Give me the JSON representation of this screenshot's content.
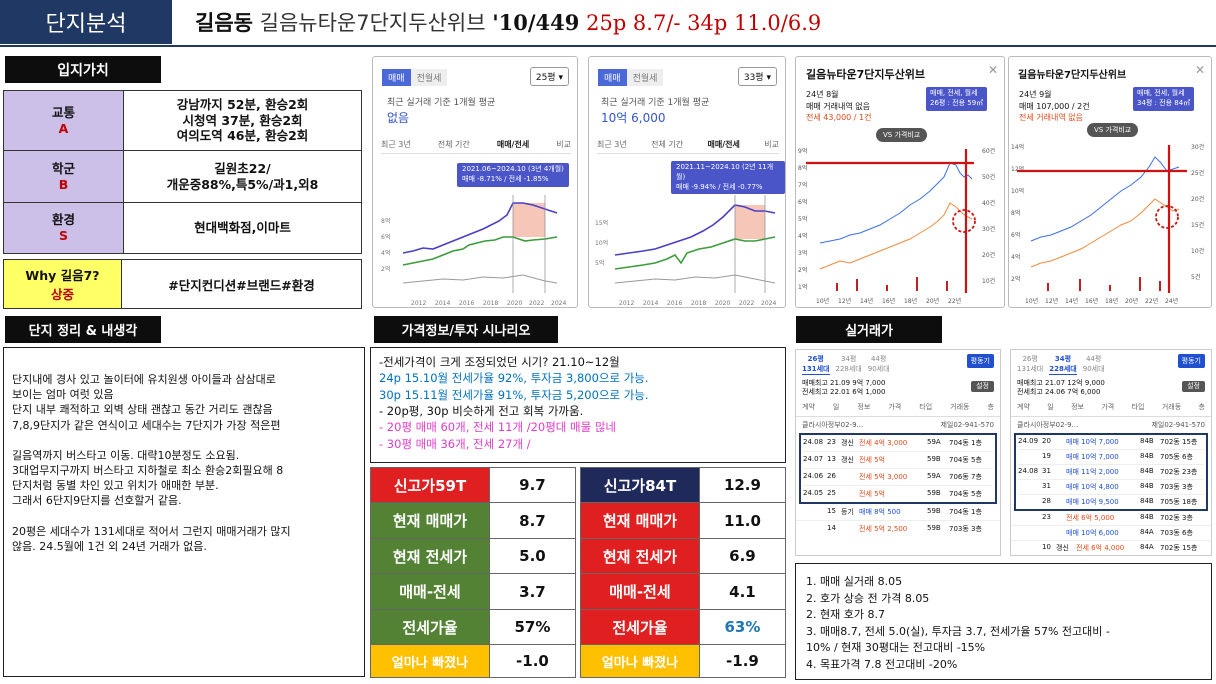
{
  "header": {
    "tag": "단지분석",
    "title_bold": "길음동",
    "title_name": "길음뉴타운7단지두산위브",
    "title_units": "'10/449",
    "title_price": "25p 8.7/- 34p 11.0/6.9"
  },
  "location": {
    "heading": "입지가치",
    "rows": [
      {
        "cat": "교통",
        "grade": "A",
        "desc": "강남까지 52분, 환승2회\n시청역 37분, 환승2회\n여의도역 46분, 환승2회"
      },
      {
        "cat": "학군",
        "grade": "B",
        "desc": "길원초22/\n개운중88%,특5%/과1,외8"
      },
      {
        "cat": "환경",
        "grade": "S",
        "desc": "현대백화점,이마트"
      }
    ],
    "why_label": "Why 길음7?",
    "why_grade": "상중",
    "why_desc": "#단지컨디션#브랜드#환경"
  },
  "notes": {
    "heading": "단지 정리 & 내생각",
    "body": "단지내에 경사 있고 놀이터에 유치원생 아이들과 삼삼대로\n보이는 엄마 여럿 있음\n단지 내부 쾌적하고 외벽 상태 괜찮고 동간 거리도 괜찮음\n7,8,9단지가 같은 연식이고 세대수는 7단지가 가장 적은편\n\n길음역까지 버스타고 이동. 대략10분정도 소요됨.\n3대업무지구까지 버스타고 지하철로 최소 환승2회필요해 8\n단지처럼 동별 차인 있고 위치가 애매한 부분.\n그래서 6단지9단지를 선호할거 같음.\n\n20평은 세대수가 131세대로 적어서 그런지 매매거래가 많지\n않음. 24.5월에 1건 외 24년 거래가 없음."
  },
  "scenario": {
    "heading": "가격정보/투자 시나리오",
    "line1": "-전세가격이 크게 조정되었던 시기? 21.10~12월",
    "line2": "24p 15.10월 전세가율 92%, 투자금 3,800으로 가능.",
    "line3": "30p 15.11월 전세가율 91%, 투자금 5,200으로 가능.",
    "line4": "- 20p평, 30p 비슷하게 전고 회복 가까움.",
    "line5": "-  20평 매매 60개, 전세 11개 /20평대 매물 많네",
    "line6": "-  30평 매매 36개, 전세 27개 /"
  },
  "metrics59": [
    {
      "label": "신고가59T",
      "value": "9.7"
    },
    {
      "label": "현재 매매가",
      "value": "8.7"
    },
    {
      "label": "현재 전세가",
      "value": "5.0"
    },
    {
      "label": "매매-전세",
      "value": "3.7"
    },
    {
      "label": "전세가율",
      "value": "57%"
    },
    {
      "label": "얼마나 빠졌나",
      "value": "-1.0"
    }
  ],
  "metrics84": [
    {
      "label": "신고가84T",
      "value": "12.9"
    },
    {
      "label": "현재 매매가",
      "value": "11.0"
    },
    {
      "label": "현재 전세가",
      "value": "6.9"
    },
    {
      "label": "매매-전세",
      "value": "4.1"
    },
    {
      "label": "전세가율",
      "value": "63%"
    },
    {
      "label": "얼마나 빠졌나",
      "value": "-1.9"
    }
  ],
  "chart1": {
    "tab_active": "매매",
    "tab_other": "전월세",
    "size": "25평",
    "subtitle": "최근 실거래 기준 1개월 평균",
    "value": "없음",
    "tabs": [
      "최근 3년",
      "전체 기간",
      "매매/전세",
      "비교"
    ],
    "tooltip1": "2021.06~2024.10 (3년 4개월)",
    "tooltip2": "매매 -8.71% / 전세 -1.85%",
    "years": [
      "2012",
      "2014",
      "2016",
      "2018",
      "2020",
      "2022",
      "2024"
    ],
    "yticks": [
      "8억",
      "6억",
      "4억",
      "2억"
    ]
  },
  "chart2": {
    "tab_active": "매매",
    "tab_other": "전월세",
    "size": "33평",
    "subtitle": "최근 실거래 기준 1개월 평균",
    "value": "10억 6,000",
    "tabs": [
      "최근 3년",
      "전체 기간",
      "매매/전세",
      "비교"
    ],
    "tooltip1": "2021.11~2024.10 (2년 11개월)",
    "tooltip2": "매매 -9.94% / 전세 -0.77%",
    "years": [
      "2012",
      "2014",
      "2016",
      "2018",
      "2020",
      "2022",
      "2024"
    ],
    "yticks": [
      "15억",
      "10억",
      "5억"
    ]
  },
  "panel3": {
    "title": "길음뉴타운7단지두산위브",
    "date": "24년 8월",
    "line1": "매매 거래내역 없음",
    "line2": "전세 43,000 / 1건",
    "badge1": "매매, 전세, 월세",
    "badge2": "26평 : 전용 59㎡",
    "compare": "VS 가격비교",
    "yleft": [
      "9억",
      "8억",
      "7억",
      "6억",
      "5억",
      "4억",
      "3억",
      "2억",
      "1억"
    ],
    "yright": [
      "60건",
      "50건",
      "40건",
      "30건",
      "20건",
      "10건"
    ],
    "xticks": [
      "10년",
      "12년",
      "14년",
      "16년",
      "18년",
      "20년",
      "22년"
    ]
  },
  "panel4": {
    "title": "길음뉴타운7단지두산위브",
    "date": "24년 9월",
    "line1": "매매 107,000 / 2건",
    "line2": "전세 거래내역 없음",
    "badge1": "매매, 전세, 월세",
    "badge2": "34평 : 전용 84㎡",
    "compare": "VS 가격비교",
    "yleft": [
      "14억",
      "12억",
      "10억",
      "8억",
      "6억",
      "4억",
      "2억"
    ],
    "yright": [
      "30건",
      "25건",
      "20건",
      "15건",
      "10건",
      "5건"
    ],
    "xticks": [
      "10년",
      "12년",
      "14년",
      "16년",
      "18년",
      "20년",
      "22년",
      "24년"
    ]
  },
  "trades": {
    "heading": "실거래가",
    "left": {
      "tabs": [
        "26평\n131세대",
        "34평\n228세대",
        "44평\n90세대"
      ],
      "button": "평동기",
      "info1": "매매최고 21.09 9억 7,000",
      "info2": "전세최고 22.01 6억 1,000",
      "setting": "설정",
      "cols": [
        "계약",
        "일",
        "정보",
        "가격",
        "타입",
        "거래동",
        "층"
      ],
      "agent": "클라시아정부02-9...",
      "agent2": "제일02-941-570",
      "rows": [
        {
          "ym": "24.08",
          "d": "23",
          "info": "갱신",
          "price": "전세 4억 3,000",
          "type": "59A",
          "dong": "704동 1층"
        },
        {
          "ym": "24.07",
          "d": "13",
          "info": "갱신",
          "price": "전세 5억",
          "type": "59B",
          "dong": "704동 5층"
        },
        {
          "ym": "24.06",
          "d": "26",
          "info": "",
          "price": "전세 5억 3,000",
          "type": "59A",
          "dong": "706동 7층"
        },
        {
          "ym": "24.05",
          "d": "25",
          "info": "",
          "price": "전세 5억",
          "type": "59B",
          "dong": "704동 5층"
        },
        {
          "ym": "",
          "d": "15",
          "info": "등기",
          "price": "매매 8억 500",
          "type": "59B",
          "dong": "704동 1층"
        },
        {
          "ym": "",
          "d": "14",
          "info": "",
          "price": "전세 5억 2,500",
          "type": "59B",
          "dong": "703동 3층"
        }
      ]
    },
    "right": {
      "tabs": [
        "26평\n131세대",
        "34평\n228세대",
        "44평\n90세대"
      ],
      "button": "평동기",
      "info1": "매매최고 21.07 12억 9,000",
      "info2": "전세최고 24.06 7억 6,000",
      "setting": "설정",
      "cols": [
        "계약",
        "일",
        "정보",
        "가격",
        "타입",
        "거래동",
        "층"
      ],
      "agent": "클라시아정부02-9...",
      "agent2": "제일02-941-570",
      "rows": [
        {
          "ym": "24.09",
          "d": "20",
          "info": "",
          "price": "매매 10억 7,000",
          "type": "84B",
          "dong": "702동 15층"
        },
        {
          "ym": "",
          "d": "19",
          "info": "",
          "price": "매매 10억 7,000",
          "type": "84B",
          "dong": "705동 6층"
        },
        {
          "ym": "24.08",
          "d": "31",
          "info": "",
          "price": "매매 11억 2,000",
          "type": "84B",
          "dong": "702동 23층"
        },
        {
          "ym": "",
          "d": "31",
          "info": "",
          "price": "매매 10억 4,800",
          "type": "84B",
          "dong": "703동 3층"
        },
        {
          "ym": "",
          "d": "28",
          "info": "",
          "price": "매매 10억 9,500",
          "type": "84B",
          "dong": "705동 18층"
        },
        {
          "ym": "",
          "d": "23",
          "info": "",
          "price": "전세 6억 5,000",
          "type": "84B",
          "dong": "702동 3층"
        },
        {
          "ym": "",
          "d": "",
          "info": "",
          "price": "매매 10억 6,000",
          "type": "84A",
          "dong": "703동 6층"
        },
        {
          "ym": "",
          "d": "10",
          "info": "갱신",
          "price": "전세 6억 4,000",
          "type": "84A",
          "dong": "702동 15층"
        }
      ]
    }
  },
  "summary": {
    "l1": "1. 매매 실거래 8.05",
    "l2": "2. 호가 상승 전 가격 8.05",
    "l3": "2. 현재 호가 8.7",
    "l4": "3. 매매8.7, 전세 5.0(실), 투자금 3.7, 전세가율 57% 전고대비 -",
    "l5": "10% / 현재 30평대는 전고대비 -15%",
    "l6": "4. 목표가격 7.8 전고대비 -20%"
  },
  "colors": {
    "navy": "#1f3864",
    "purple_cell": "#ccc0e8",
    "red": "#c00000",
    "green": "#548235",
    "orange": "#ffc000"
  }
}
